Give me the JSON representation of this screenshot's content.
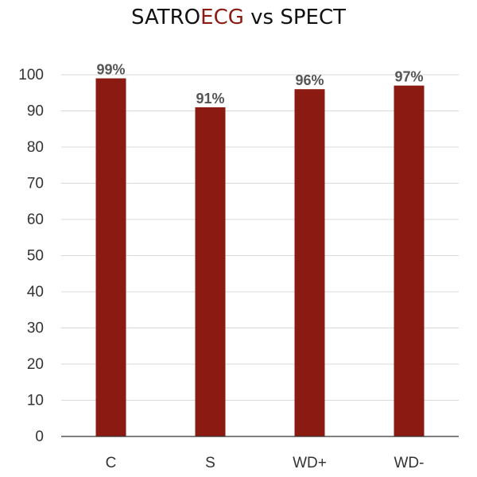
{
  "chart_data": {
    "type": "bar",
    "title": {
      "prefix": "SATRO",
      "accent": "ECG",
      "suffix": " vs SPECT"
    },
    "categories": [
      "C",
      "S",
      "WD+",
      "WD-"
    ],
    "values": [
      99,
      91,
      96,
      97
    ],
    "data_labels": [
      "99%",
      "91%",
      "96%",
      "97%"
    ],
    "y_ticks": [
      "0",
      "10",
      "20",
      "30",
      "40",
      "50",
      "60",
      "70",
      "80",
      "90",
      "100"
    ],
    "ylim": [
      0,
      100
    ],
    "grid": true,
    "legend": "none",
    "xlabel": "",
    "ylabel": ""
  },
  "colors": {
    "bar": "#8b1a12",
    "title_accent": "#8b1a12",
    "grid": "#d9d9d9",
    "axis": "#333333"
  }
}
